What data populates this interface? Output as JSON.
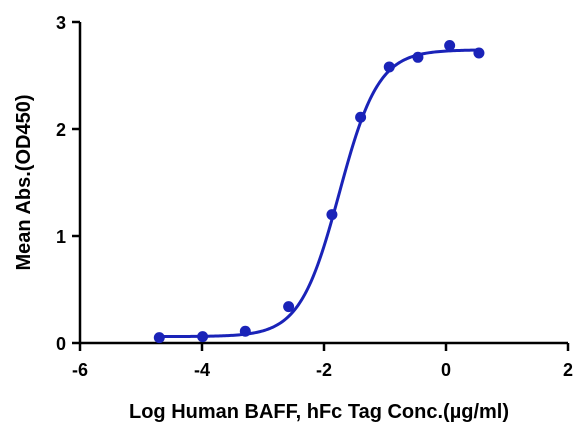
{
  "chart_data": {
    "type": "scatter",
    "title": "",
    "xlabel": "Log Human BAFF, hFc Tag Conc.(µg/ml)",
    "ylabel": "Mean Abs.(OD450)",
    "xlim": [
      -6,
      2
    ],
    "ylim": [
      0,
      3
    ],
    "xticks": [
      -6,
      -4,
      -2,
      0,
      2
    ],
    "xtick_labels": [
      "-6",
      "-4",
      "-2",
      "0",
      "2"
    ],
    "yticks": [
      0,
      1,
      2,
      3
    ],
    "ytick_labels": [
      "0",
      "1",
      "2",
      "3"
    ],
    "grid": false,
    "legend": "none",
    "series": [
      {
        "color": "#1a23b8",
        "points": [
          {
            "x": -4.7,
            "y": 0.05
          },
          {
            "x": -3.99,
            "y": 0.06
          },
          {
            "x": -3.29,
            "y": 0.11
          },
          {
            "x": -2.58,
            "y": 0.34
          },
          {
            "x": -1.87,
            "y": 1.2
          },
          {
            "x": -1.4,
            "y": 2.11
          },
          {
            "x": -0.93,
            "y": 2.58
          },
          {
            "x": -0.46,
            "y": 2.67
          },
          {
            "x": 0.06,
            "y": 2.78
          },
          {
            "x": 0.54,
            "y": 2.71
          }
        ],
        "fit": {
          "model": "4PL",
          "bottom": 0.06,
          "top": 2.74,
          "logEC50": -1.75,
          "hill": 1.35,
          "x_range": [
            -4.7,
            0.54
          ]
        }
      }
    ]
  }
}
